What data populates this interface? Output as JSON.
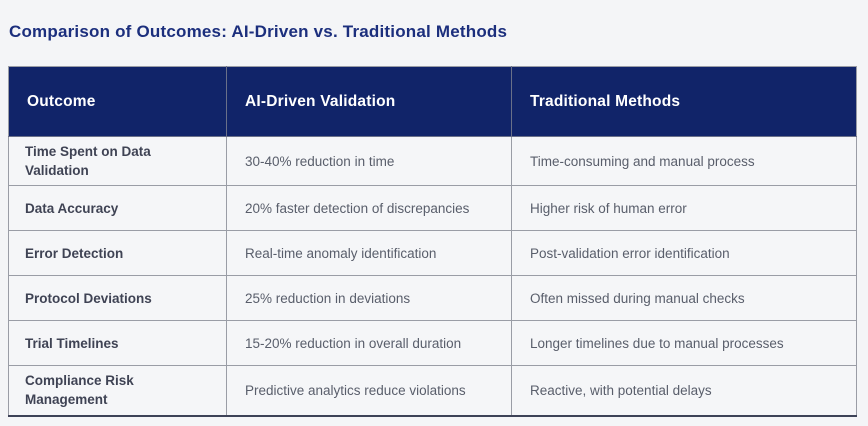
{
  "page": {
    "title": "Comparison of Outcomes: AI-Driven vs. Traditional Methods"
  },
  "table": {
    "columns": [
      "Outcome",
      "AI-Driven Validation",
      "Traditional Methods"
    ],
    "rows": [
      {
        "outcome": "Time Spent on Data Validation",
        "ai": "30-40% reduction in time",
        "traditional": "Time-consuming and manual process"
      },
      {
        "outcome": "Data Accuracy",
        "ai": "20% faster detection of discrepancies",
        "traditional": "Higher risk of human error"
      },
      {
        "outcome": "Error Detection",
        "ai": "Real-time anomaly identification",
        "traditional": "Post-validation error identification"
      },
      {
        "outcome": "Protocol Deviations",
        "ai": "25% reduction in deviations",
        "traditional": "Often missed during manual checks"
      },
      {
        "outcome": "Trial Timelines",
        "ai": "15-20% reduction in overall duration",
        "traditional": "Longer timelines due to manual processes"
      },
      {
        "outcome": "Compliance Risk Management",
        "ai": "Predictive analytics reduce violations",
        "traditional": "Reactive, with potential delays"
      }
    ]
  },
  "colors": {
    "header_background": "#112469",
    "header_text": "#ffffff",
    "title_text": "#1c2f7d",
    "body_text": "#595e6b",
    "outcome_text": "#3f4354",
    "cell_background": "#f5f6f8",
    "page_background": "#f4f5f7",
    "border": "#9a9da6",
    "bottom_border": "#3d4257"
  }
}
